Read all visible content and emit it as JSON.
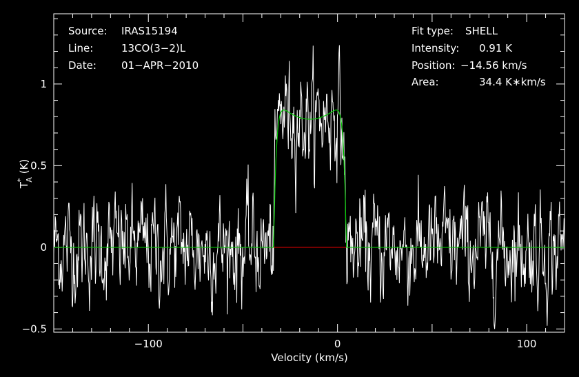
{
  "chart_data": {
    "type": "line",
    "xlabel": "Velocity (km/s)",
    "ylabel": "T",
    "ylabel_sup": "*",
    "ylabel_sub": "A",
    "ylabel_unit": " (K)",
    "xlim": [
      -150,
      120
    ],
    "ylim": [
      -0.52,
      1.43
    ],
    "x_ticks": [
      {
        "value": -100,
        "label": "−100"
      },
      {
        "value": 0,
        "label": "0"
      },
      {
        "value": 100,
        "label": "100"
      }
    ],
    "y_ticks": [
      {
        "value": -0.5,
        "label": "−0.5"
      },
      {
        "value": 0,
        "label": "0"
      },
      {
        "value": 0.5,
        "label": "0.5"
      },
      {
        "value": 1,
        "label": "1"
      }
    ],
    "fit": {
      "type": "SHELL",
      "intensity_K": 0.91,
      "center_kms": -14.56,
      "half_width_kms": 19.2,
      "horn_ratio": 0.16
    },
    "spectrum_noise_rms_K": 0.16,
    "spectrum_samples": 1030,
    "colors": {
      "background": "#000000",
      "spectrum": "#ffffff",
      "fit": "#00cc00",
      "baseline": "#ff0000",
      "axes": "#ffffff"
    }
  },
  "annotations_left": [
    {
      "label": "Source:",
      "value": "IRAS15194"
    },
    {
      "label": "Line:",
      "value": "13CO(3−2)L"
    },
    {
      "label": "Date:",
      "value": "01−APR−2010"
    }
  ],
  "annotations_right": [
    {
      "label": "Fit type:",
      "value": "SHELL"
    },
    {
      "label": "Intensity:",
      "value": "0.91 K"
    },
    {
      "label": "Position:",
      "value": "−14.56 km/s"
    },
    {
      "label": "Area:",
      "value": "34.4 K∗km/s"
    }
  ]
}
